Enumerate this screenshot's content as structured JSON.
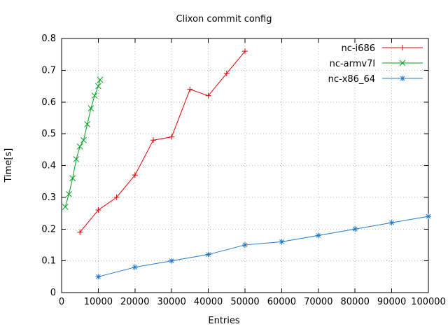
{
  "chart_data": {
    "type": "line",
    "title": "Clixon commit config",
    "xlabel": "Entries",
    "ylabel": "Time[s]",
    "xlim": [
      0,
      100000
    ],
    "ylim": [
      0,
      0.8
    ],
    "xticks": [
      0,
      10000,
      20000,
      30000,
      40000,
      50000,
      60000,
      70000,
      80000,
      90000,
      100000
    ],
    "yticks": [
      0,
      0.1,
      0.2,
      0.3,
      0.4,
      0.5,
      0.6,
      0.7,
      0.8
    ],
    "grid": true,
    "grid_color": "#b4b4b4",
    "legend_position": "top-right-inside",
    "series": [
      {
        "name": "nc-i686",
        "color": "#e60000",
        "marker": "plus",
        "x": [
          5000,
          10000,
          15000,
          20000,
          25000,
          30000,
          35000,
          40000,
          45000,
          50000
        ],
        "y": [
          0.19,
          0.26,
          0.3,
          0.37,
          0.48,
          0.49,
          0.64,
          0.62,
          0.69,
          0.76
        ]
      },
      {
        "name": "nc-armv7l",
        "color": "#00a020",
        "marker": "x",
        "x": [
          1000,
          2000,
          3000,
          4000,
          5000,
          6000,
          7000,
          8000,
          9000,
          10000,
          10500
        ],
        "y": [
          0.27,
          0.31,
          0.36,
          0.42,
          0.46,
          0.48,
          0.53,
          0.58,
          0.62,
          0.65,
          0.67
        ]
      },
      {
        "name": "nc-x86_64",
        "color": "#1f78c8",
        "marker": "asterisk",
        "x": [
          10000,
          20000,
          30000,
          40000,
          50000,
          60000,
          70000,
          80000,
          90000,
          100000
        ],
        "y": [
          0.05,
          0.08,
          0.1,
          0.12,
          0.15,
          0.16,
          0.18,
          0.2,
          0.22,
          0.24
        ]
      }
    ]
  }
}
